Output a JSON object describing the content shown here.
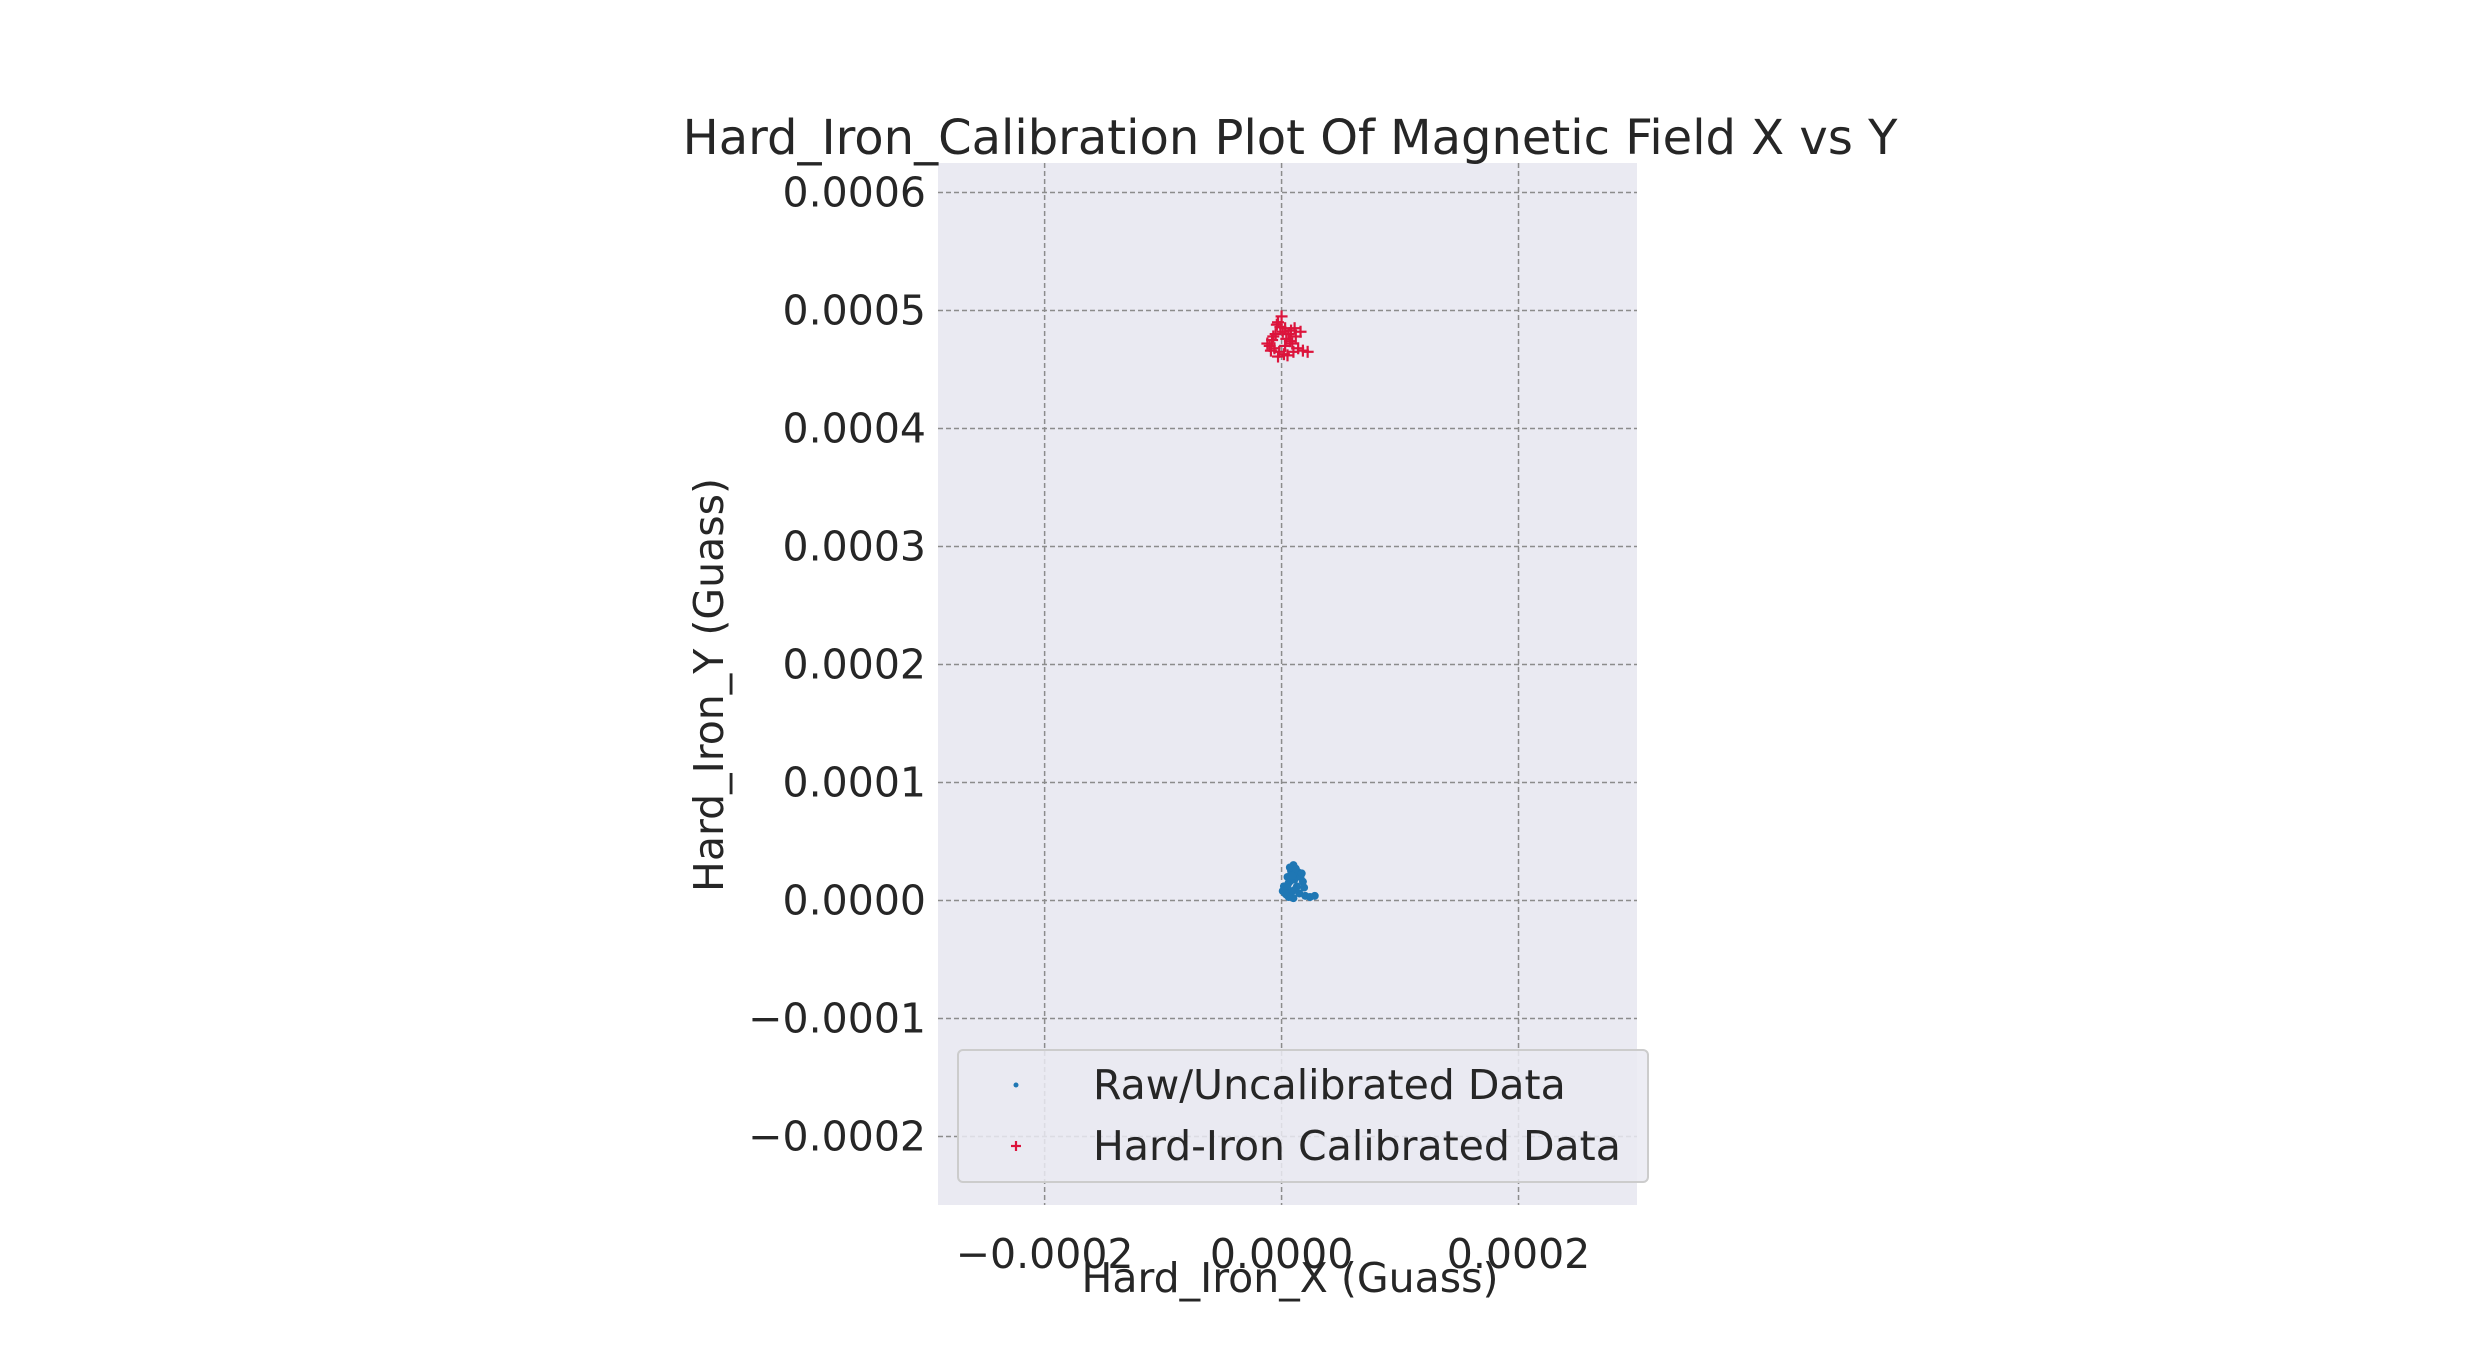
{
  "chart_data": {
    "type": "scatter",
    "title": "Hard_Iron_Calibration Plot Of Magnetic Field X vs Y",
    "xlabel": "Hard_Iron_X (Guass)",
    "ylabel": "Hard_Iron_Y (Guass)",
    "xlim": [
      -0.00029,
      0.0003
    ],
    "ylim": [
      -0.000258,
      0.000625
    ],
    "x_ticks": [
      -0.0002,
      0.0,
      0.0002
    ],
    "x_tick_labels": [
      "−0.0002",
      "0.0000",
      "0.0002"
    ],
    "y_ticks": [
      -0.0002,
      -0.0001,
      0.0,
      0.0001,
      0.0002,
      0.0003,
      0.0004,
      0.0005,
      0.0006
    ],
    "y_tick_labels": [
      "−0.0002",
      "−0.0001",
      "0.0000",
      "0.0001",
      "0.0002",
      "0.0003",
      "0.0004",
      "0.0005",
      "0.0006"
    ],
    "grid": true,
    "legend_position": "lower-right",
    "background": "#eaeaf2",
    "series": [
      {
        "name": "Raw/Uncalibrated Data",
        "marker": "dot",
        "color": "#1f77b4",
        "x": [
          5e-06,
          8e-06,
          1e-05,
          1.2e-05,
          6e-06,
          3e-06,
          1.1e-05,
          1.4e-05,
          1.6e-05,
          1.8e-05,
          9e-06,
          4e-06,
          2e-06,
          7e-06,
          1.3e-05,
          1.5e-05,
          2e-05,
          2.4e-05,
          2.8e-05,
          1e-05,
          6e-06,
          1e-06,
          1.2e-05,
          1.7e-05,
          8e-06,
          5e-06,
          1.9e-05,
          1.1e-05,
          3e-06,
          9e-06
        ],
        "y": [
          2e-05,
          2.5e-05,
          3e-05,
          2.2e-05,
          1.5e-05,
          1e-05,
          1.8e-05,
          2.4e-05,
          2e-05,
          1.6e-05,
          8e-06,
          5e-06,
          1.2e-05,
          2.8e-05,
          1.2e-05,
          6e-06,
          4e-06,
          3e-06,
          4e-06,
          2e-06,
          3e-06,
          8e-06,
          2.7e-05,
          2.3e-05,
          1.7e-05,
          1.3e-05,
          1.1e-05,
          9e-06,
          6e-06,
          2.1e-05
        ]
      },
      {
        "name": "Hard-Iron Calibrated Data",
        "marker": "plus",
        "color": "#dc143c",
        "x": [
          -8e-06,
          -5e-06,
          -3e-06,
          0.0,
          3e-06,
          6e-06,
          8e-06,
          -1e-05,
          -6e-06,
          -2e-06,
          2e-06,
          5e-06,
          1e-05,
          1.4e-05,
          1.8e-05,
          2.2e-05,
          -1.2e-05,
          -7e-06,
          -1e-06,
          4e-06,
          9e-06,
          -4e-06,
          1e-06,
          7e-06,
          1.2e-05,
          -9e-06,
          -3e-06,
          3e-06,
          1.1e-05,
          1.6e-05
        ],
        "y": [
          0.000475,
          0.00048,
          0.00049,
          0.000495,
          0.000485,
          0.00048,
          0.000483,
          0.00047,
          0.000468,
          0.000465,
          0.000463,
          0.000462,
          0.000465,
          0.000468,
          0.000466,
          0.000465,
          0.000472,
          0.000478,
          0.000486,
          0.000476,
          0.000472,
          0.000488,
          0.000482,
          0.000474,
          0.000478,
          0.000466,
          0.000461,
          0.00047,
          0.000485,
          0.000482
        ]
      }
    ]
  }
}
